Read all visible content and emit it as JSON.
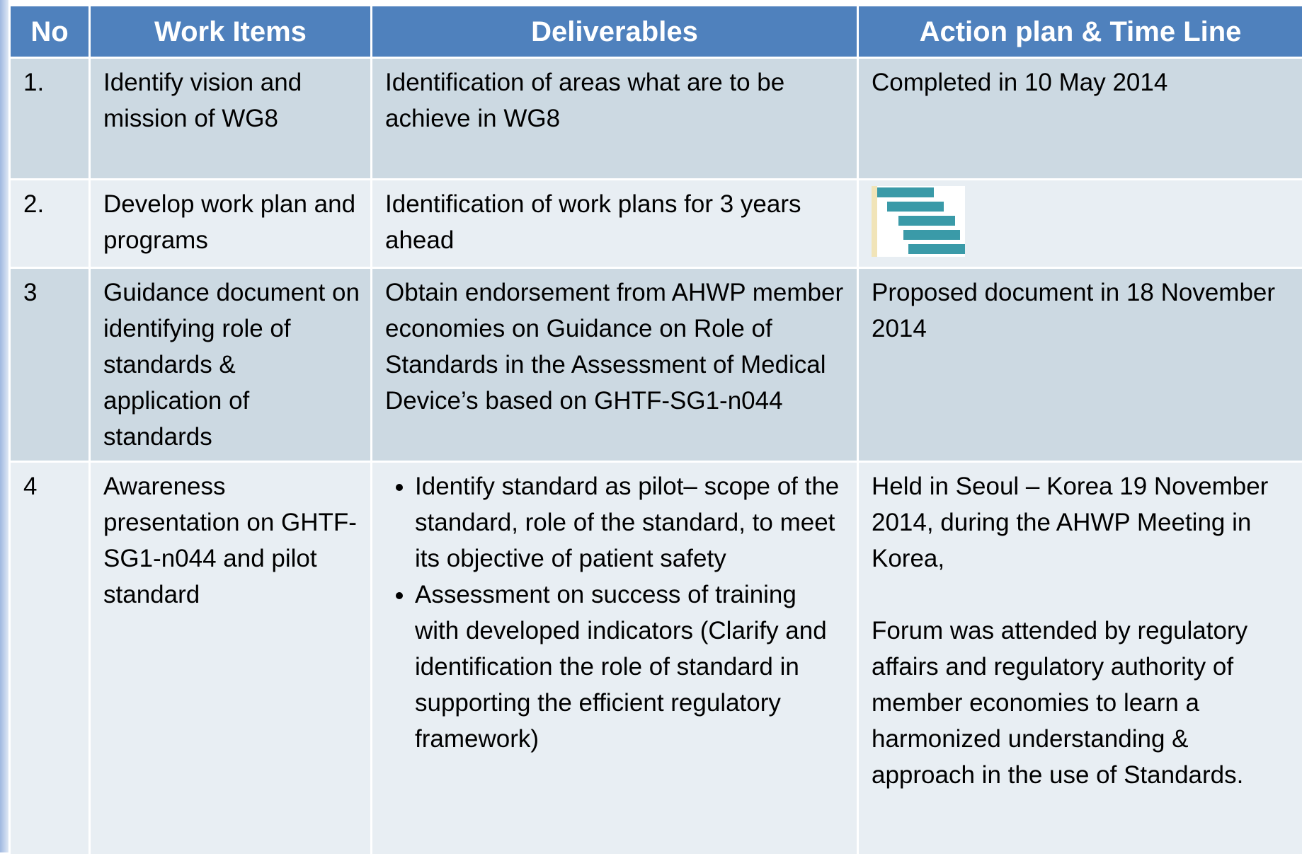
{
  "header": {
    "columns": [
      "No",
      "Work Items",
      "Deliverables",
      "Action plan & Time Line"
    ]
  },
  "table": {
    "rows": [
      {
        "no": "1.",
        "work_item": "Identify vision and mission of WG8",
        "deliverables": [
          "Identification of areas what are to be achieve in WG8"
        ],
        "action_plan": [
          "Completed in 10 May 2014"
        ]
      },
      {
        "no": "2.",
        "work_item": "Develop work plan and programs",
        "deliverables": [
          "Identification of work plans for 3 years ahead"
        ],
        "action_plan": []
      },
      {
        "no": "3",
        "work_item": "Guidance document on identifying role of standards & application of standards",
        "deliverables": [
          "Obtain endorsement from AHWP member economies on Guidance on Role of Standards in the Assessment of Medical Device’s based on GHTF-SG1-n044"
        ],
        "action_plan": [
          "Proposed document in 18 November 2014"
        ]
      },
      {
        "no": "4",
        "work_item": "Awareness presentation on GHTF-SG1-n044 and pilot standard",
        "bullets": [
          "Identify standard as pilot– scope of the standard, role of the standard, to meet its objective of patient safety",
          "Assessment on success of training with developed indicators (Clarify and identification the role of standard in supporting the efficient regulatory framework)"
        ],
        "action_plan": [
          "Held in Seoul – Korea 19 November 2014, during the AHWP Meeting in Korea,",
          "Forum was attended by regulatory affairs and regulatory authority of member economies to learn a harmonized understanding & approach in the use of Standards."
        ]
      }
    ]
  }
}
